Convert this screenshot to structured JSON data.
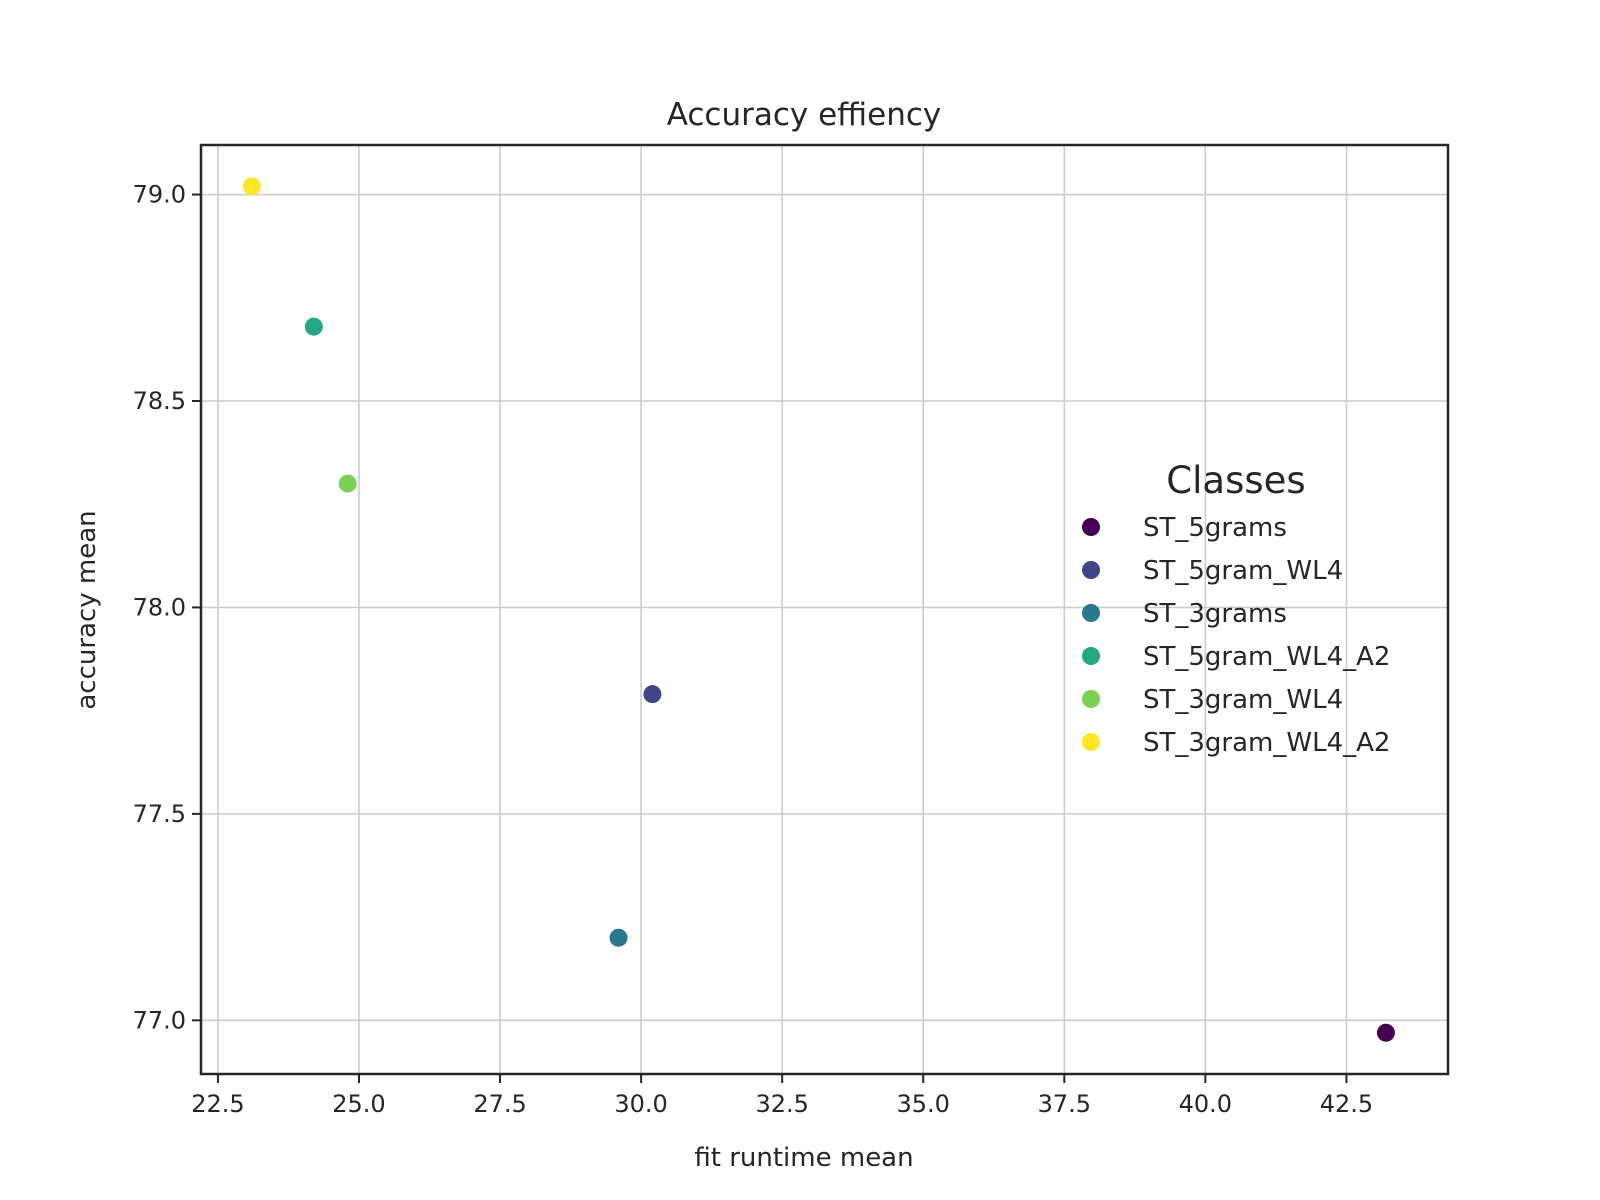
{
  "chart_data": {
    "type": "scatter",
    "title": "Accuracy effiency",
    "xlabel": "fit runtime mean",
    "ylabel": "accuracy mean",
    "xlim": [
      22.2,
      44.3
    ],
    "ylim": [
      76.87,
      79.12
    ],
    "xticks": [
      22.5,
      25.0,
      27.5,
      30.0,
      32.5,
      35.0,
      37.5,
      40.0,
      42.5
    ],
    "yticks": [
      77.0,
      77.5,
      78.0,
      78.5,
      79.0
    ],
    "grid": true,
    "legend": {
      "title": "Classes",
      "placement": "center-right"
    },
    "series": [
      {
        "name": "ST_5grams",
        "color": "#440154",
        "x": 43.2,
        "y": 76.97
      },
      {
        "name": "ST_5gram_WL4",
        "color": "#414487",
        "x": 30.2,
        "y": 77.79
      },
      {
        "name": "ST_3grams",
        "color": "#2a788e",
        "x": 29.6,
        "y": 77.2
      },
      {
        "name": "ST_5gram_WL4_A2",
        "color": "#22a884",
        "x": 24.2,
        "y": 78.68
      },
      {
        "name": "ST_3gram_WL4",
        "color": "#7ad151",
        "x": 24.8,
        "y": 78.3
      },
      {
        "name": "ST_3gram_WL4_A2",
        "color": "#fde725",
        "x": 23.1,
        "y": 79.02
      }
    ]
  }
}
